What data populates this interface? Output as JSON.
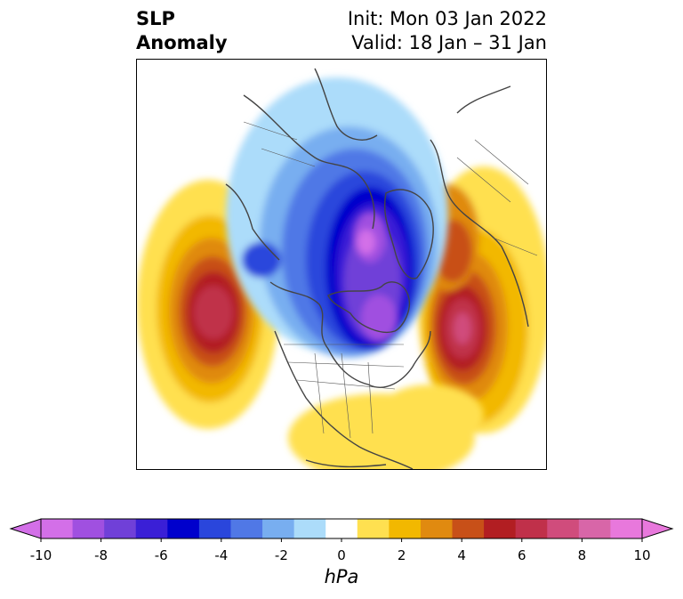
{
  "title": {
    "left_line1": "SLP",
    "left_line2": "Anomaly",
    "right_line1": "Init: Mon 03 Jan 2022",
    "right_line2": "Valid: 18 Jan – 31 Jan"
  },
  "colorbar": {
    "unit": "hPa",
    "levels": [
      -10,
      -9,
      -8,
      -7,
      -6,
      -5,
      -4,
      -3,
      -2,
      -1,
      1,
      2,
      3,
      4,
      5,
      6,
      7,
      8,
      9,
      10
    ],
    "tick_labels": [
      "-10",
      "-8",
      "-6",
      "-4",
      "-2",
      "0",
      "2",
      "4",
      "6",
      "8",
      "10"
    ],
    "colors": [
      "#d36fe8",
      "#a050e0",
      "#7040d8",
      "#3a1fd6",
      "#0000cc",
      "#2a46dc",
      "#5078e6",
      "#78aef0",
      "#acdcfa",
      "#ffffff",
      "#ffe050",
      "#f2b800",
      "#e08a10",
      "#c85018",
      "#b21e22",
      "#c0304a",
      "#d04c7c",
      "#d866a8",
      "#e878dc"
    ],
    "extend": "both"
  },
  "map": {
    "projection": "north-polar-stereographic",
    "coastlines": "#444444",
    "features": {
      "negative_anomaly": "Arctic / northern Canada and Greenland low, minimum below -9 hPa",
      "positive_anomaly_pacific": "North Pacific high, maximum ~8 hPa",
      "positive_anomaly_atlantic": "North Atlantic high, maximum ~9 hPa",
      "positive_anomaly_siberia": "Siberian high, ~5 hPa"
    }
  }
}
